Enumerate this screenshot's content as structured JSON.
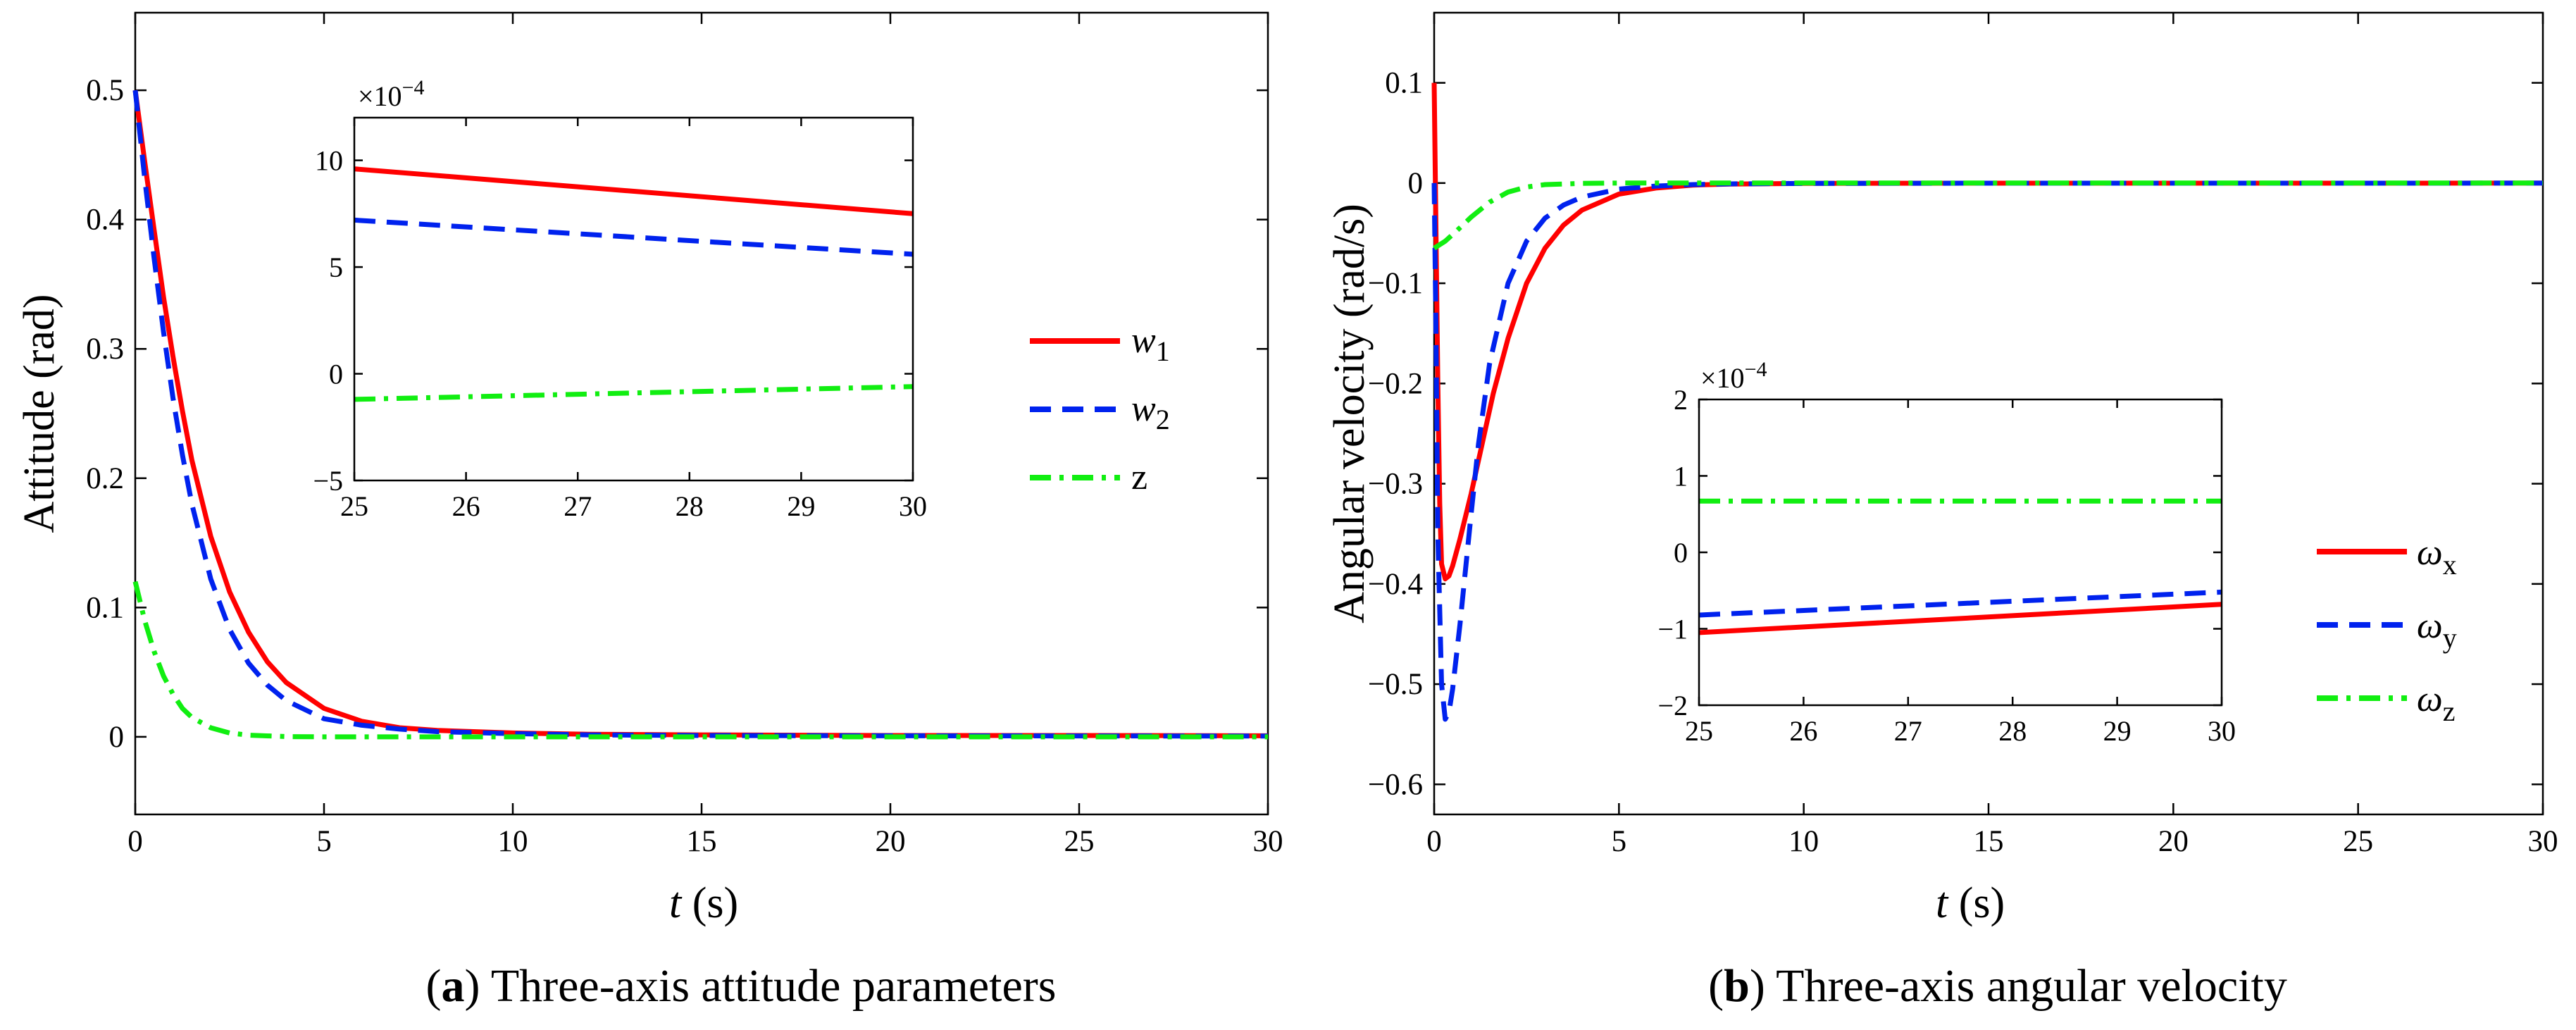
{
  "chart_data": [
    {
      "type": "line",
      "panel_letter": "a",
      "caption_text": " Three-axis attitude parameters",
      "xlabel_var": "t",
      "xlabel_unit": " (s)",
      "ylabel": "Attitude (rad)",
      "xlim": [
        0,
        30
      ],
      "ylim": [
        -0.06,
        0.56
      ],
      "xticks": [
        0,
        5,
        10,
        15,
        20,
        25,
        30
      ],
      "yticks": [
        0,
        0.1,
        0.2,
        0.3,
        0.4,
        0.5
      ],
      "colors": {
        "w1": "#ff0000",
        "w2": "#0022ee",
        "z": "#11ee11"
      },
      "legend": [
        {
          "key": "w1",
          "label": "w",
          "sub": "1",
          "italic": true
        },
        {
          "key": "w2",
          "label": "w",
          "sub": "2",
          "italic": true
        },
        {
          "key": "z",
          "label": "z",
          "sub": "",
          "italic": false
        }
      ],
      "series": [
        {
          "name": "w1",
          "style": "solid",
          "x": [
            0,
            0.25,
            0.5,
            0.75,
            1,
            1.25,
            1.5,
            2,
            2.5,
            3,
            3.5,
            4,
            5,
            6,
            7,
            8,
            10,
            12,
            15,
            20,
            25,
            30
          ],
          "y": [
            0.5,
            0.445,
            0.392,
            0.34,
            0.294,
            0.252,
            0.214,
            0.155,
            0.112,
            0.081,
            0.058,
            0.042,
            0.022,
            0.012,
            0.007,
            0.005,
            0.003,
            0.002,
            0.0015,
            0.001,
            0.001,
            0.0008
          ]
        },
        {
          "name": "w2",
          "style": "dashed",
          "x": [
            0,
            0.25,
            0.5,
            0.75,
            1,
            1.25,
            1.5,
            2,
            2.5,
            3,
            3.5,
            4,
            5,
            6,
            7,
            8,
            10,
            12,
            15,
            20,
            25,
            30
          ],
          "y": [
            0.5,
            0.432,
            0.37,
            0.313,
            0.262,
            0.218,
            0.18,
            0.122,
            0.083,
            0.057,
            0.04,
            0.028,
            0.014,
            0.009,
            0.006,
            0.004,
            0.0025,
            0.0015,
            0.001,
            0.0008,
            0.0007,
            0.0006
          ]
        },
        {
          "name": "z",
          "style": "dashdot",
          "x": [
            0,
            0.25,
            0.5,
            0.75,
            1,
            1.25,
            1.5,
            2,
            2.5,
            3,
            4,
            5,
            10,
            20,
            30
          ],
          "y": [
            0.12,
            0.09,
            0.066,
            0.047,
            0.033,
            0.022,
            0.015,
            0.007,
            0.003,
            0.0013,
            0.0002,
            0,
            0,
            0,
            0
          ]
        }
      ],
      "inset": {
        "multiplier_base": "×10",
        "multiplier_exp": "−4",
        "xlim": [
          25,
          30
        ],
        "ylim": [
          -5,
          12
        ],
        "xticks": [
          25,
          26,
          27,
          28,
          29,
          30
        ],
        "yticks": [
          -5,
          0,
          5,
          10
        ],
        "series": [
          {
            "name": "w1",
            "style": "solid",
            "x": [
              25,
              30
            ],
            "y": [
              9.6,
              7.5
            ]
          },
          {
            "name": "w2",
            "style": "dashed",
            "x": [
              25,
              30
            ],
            "y": [
              7.2,
              5.6
            ]
          },
          {
            "name": "z",
            "style": "dashdot",
            "x": [
              25,
              30
            ],
            "y": [
              -1.2,
              -0.6
            ]
          }
        ]
      }
    },
    {
      "type": "line",
      "panel_letter": "b",
      "caption_text": " Three-axis angular velocity",
      "xlabel_var": "t",
      "xlabel_unit": " (s)",
      "ylabel": "Angular velocity (rad/s)",
      "xlim": [
        0,
        30
      ],
      "ylim": [
        -0.63,
        0.17
      ],
      "xticks": [
        0,
        5,
        10,
        15,
        20,
        25,
        30
      ],
      "yticks": [
        -0.6,
        -0.5,
        -0.4,
        -0.3,
        -0.2,
        -0.1,
        0,
        0.1
      ],
      "colors": {
        "wx": "#ff0000",
        "wy": "#0022ee",
        "wz": "#11ee11"
      },
      "legend": [
        {
          "key": "wx",
          "label": "ω",
          "sub": "x",
          "italic": true
        },
        {
          "key": "wy",
          "label": "ω",
          "sub": "y",
          "italic": true
        },
        {
          "key": "wz",
          "label": "ω",
          "sub": "z",
          "italic": true
        }
      ],
      "series": [
        {
          "name": "wx",
          "style": "solid",
          "x": [
            0,
            0.05,
            0.1,
            0.15,
            0.2,
            0.3,
            0.4,
            0.5,
            0.7,
            1,
            1.3,
            1.6,
            2,
            2.5,
            3,
            3.5,
            4,
            5,
            6,
            7,
            8,
            10,
            15,
            20,
            25,
            30
          ],
          "y": [
            0.1,
            -0.05,
            -0.2,
            -0.32,
            -0.38,
            -0.395,
            -0.392,
            -0.382,
            -0.355,
            -0.31,
            -0.26,
            -0.21,
            -0.155,
            -0.1,
            -0.065,
            -0.042,
            -0.027,
            -0.011,
            -0.005,
            -0.002,
            -0.001,
            -0.0003,
            -0.0001,
            -0.0001,
            -0.0001,
            -7e-05
          ]
        },
        {
          "name": "wy",
          "style": "dashed",
          "x": [
            0,
            0.05,
            0.1,
            0.2,
            0.3,
            0.4,
            0.5,
            0.7,
            1,
            1.2,
            1.5,
            2,
            2.5,
            3,
            3.5,
            4,
            5,
            6,
            7,
            8,
            10,
            15,
            20,
            25,
            30
          ],
          "y": [
            0.0,
            -0.15,
            -0.35,
            -0.5,
            -0.535,
            -0.528,
            -0.505,
            -0.44,
            -0.33,
            -0.26,
            -0.18,
            -0.1,
            -0.058,
            -0.035,
            -0.022,
            -0.014,
            -0.006,
            -0.003,
            -0.0015,
            -0.0008,
            -0.0003,
            -0.0001,
            -0.0001,
            -0.0001,
            -5e-05
          ]
        },
        {
          "name": "wz",
          "style": "dashdot",
          "x": [
            0,
            0.3,
            0.6,
            1,
            1.5,
            2,
            2.5,
            3,
            4,
            5,
            10,
            20,
            30
          ],
          "y": [
            -0.065,
            -0.058,
            -0.048,
            -0.034,
            -0.019,
            -0.009,
            -0.004,
            -0.0015,
            -0.0003,
            0,
            0,
            0,
            0
          ]
        }
      ],
      "inset": {
        "multiplier_base": "×10",
        "multiplier_exp": "−4",
        "xlim": [
          25,
          30
        ],
        "ylim": [
          -2,
          2
        ],
        "xticks": [
          25,
          26,
          27,
          28,
          29,
          30
        ],
        "yticks": [
          -2,
          -1,
          0,
          1,
          2
        ],
        "series": [
          {
            "name": "wx",
            "style": "solid",
            "x": [
              25,
              30
            ],
            "y": [
              -1.05,
              -0.68
            ]
          },
          {
            "name": "wy",
            "style": "dashed",
            "x": [
              25,
              30
            ],
            "y": [
              -0.82,
              -0.52
            ]
          },
          {
            "name": "wz",
            "style": "dashdot",
            "x": [
              25,
              30
            ],
            "y": [
              0.67,
              0.67
            ]
          }
        ]
      }
    }
  ]
}
